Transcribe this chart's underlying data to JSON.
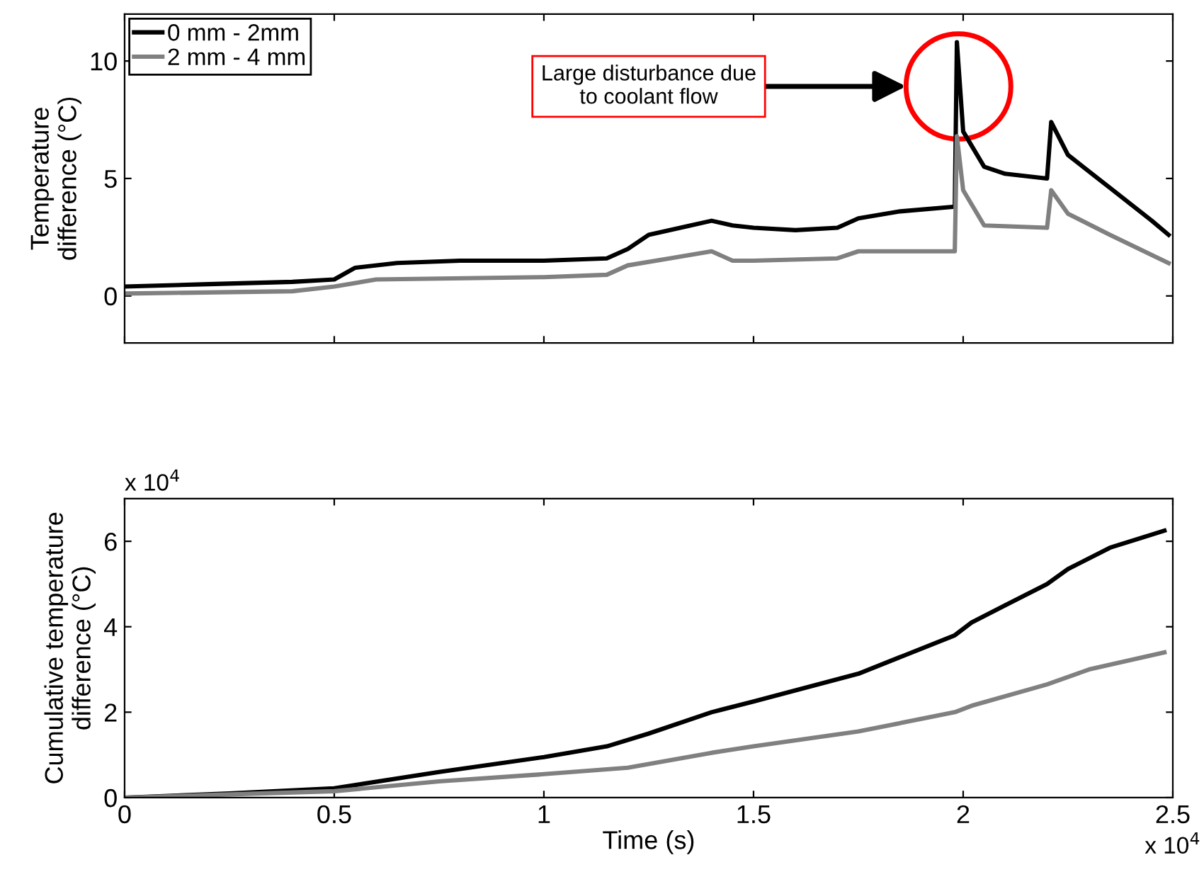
{
  "chart_data": [
    {
      "type": "line",
      "ylabel": "Temperature\ndifference (°C)",
      "xlim": [
        0,
        2.5
      ],
      "ylim": [
        -2,
        12
      ],
      "xticks": [
        0,
        0.5,
        1,
        1.5,
        2,
        2.5
      ],
      "yticks": [
        0,
        5,
        10
      ],
      "tick_labels": "y",
      "legend": "top left",
      "grid": false,
      "marker": "none",
      "line_style": "solid",
      "annotations": [
        "Large disturbance due\nto coolant flow"
      ],
      "series": [
        {
          "name": "0 mm - 2mm",
          "color": "#000000",
          "x": [
            0,
            0.2,
            0.4,
            0.5,
            0.55,
            0.65,
            0.8,
            1.0,
            1.15,
            1.2,
            1.25,
            1.35,
            1.4,
            1.45,
            1.5,
            1.6,
            1.7,
            1.75,
            1.85,
            1.98,
            1.985,
            2.0,
            2.05,
            2.1,
            2.2,
            2.21,
            2.25,
            2.35,
            2.45,
            2.49
          ],
          "values": [
            0.4,
            0.5,
            0.6,
            0.7,
            1.2,
            1.4,
            1.5,
            1.5,
            1.6,
            2.0,
            2.6,
            3.0,
            3.2,
            3.0,
            2.9,
            2.8,
            2.9,
            3.3,
            3.6,
            3.8,
            10.8,
            7.0,
            5.5,
            5.2,
            5.0,
            7.4,
            6.0,
            4.6,
            3.2,
            2.6
          ]
        },
        {
          "name": "2 mm - 4 mm",
          "color": "#808080",
          "x": [
            0,
            0.4,
            0.5,
            0.6,
            1.0,
            1.15,
            1.2,
            1.3,
            1.4,
            1.45,
            1.5,
            1.7,
            1.75,
            1.98,
            1.985,
            2.0,
            2.05,
            2.2,
            2.21,
            2.25,
            2.35,
            2.49
          ],
          "values": [
            0.1,
            0.2,
            0.4,
            0.7,
            0.8,
            0.9,
            1.3,
            1.6,
            1.9,
            1.5,
            1.5,
            1.6,
            1.9,
            1.9,
            6.8,
            4.5,
            3.0,
            2.9,
            4.5,
            3.5,
            2.6,
            1.4
          ]
        }
      ]
    },
    {
      "type": "line",
      "xlabel": "Time (s)",
      "ylabel": "Cumulative temperature\ndifference (°C)",
      "xlim": [
        0,
        2.5
      ],
      "ylim": [
        0,
        7
      ],
      "xticks": [
        0,
        0.5,
        1,
        1.5,
        2,
        2.5
      ],
      "yticks": [
        0,
        2,
        4,
        6
      ],
      "grid": false,
      "marker": "none",
      "line_style": "solid",
      "annotations": [
        "x 10$^{4}$",
        "x 10$^{4}$"
      ],
      "series": [
        {
          "color": "#000000",
          "x": [
            0,
            0.25,
            0.5,
            0.75,
            1.0,
            1.15,
            1.25,
            1.4,
            1.5,
            1.75,
            1.98,
            2.02,
            2.1,
            2.2,
            2.25,
            2.35,
            2.48
          ],
          "values": [
            0,
            0.1,
            0.22,
            0.6,
            0.95,
            1.2,
            1.5,
            2.0,
            2.25,
            2.9,
            3.8,
            4.1,
            4.5,
            5.0,
            5.35,
            5.85,
            6.25
          ]
        },
        {
          "color": "#808080",
          "x": [
            0,
            0.5,
            0.75,
            1.0,
            1.2,
            1.4,
            1.5,
            1.75,
            1.98,
            2.02,
            2.2,
            2.3,
            2.48
          ],
          "values": [
            0,
            0.15,
            0.38,
            0.55,
            0.7,
            1.05,
            1.2,
            1.55,
            2.0,
            2.15,
            2.65,
            3.0,
            3.4
          ]
        }
      ]
    }
  ]
}
